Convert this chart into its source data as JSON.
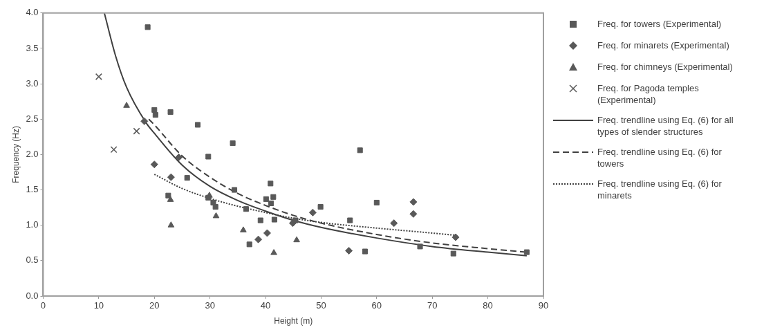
{
  "chart_data": {
    "type": "scatter",
    "xlabel": "Height (m)",
    "ylabel": "Frequency (Hz)",
    "xlim": [
      0,
      90
    ],
    "xticks": [
      0,
      10,
      20,
      30,
      40,
      50,
      60,
      70,
      80,
      90
    ],
    "ylim": [
      0,
      4
    ],
    "yticks": [
      {
        "value": 0,
        "label": "0.0"
      },
      {
        "value": 0.5,
        "label": "0.5"
      },
      {
        "value": 1,
        "label": "1.0"
      },
      {
        "value": 1.5,
        "label": "1.5"
      },
      {
        "value": 2,
        "label": "2.0"
      },
      {
        "value": 2.5,
        "label": "2.5"
      },
      {
        "value": 3,
        "label": "3.0"
      },
      {
        "value": 3.5,
        "label": "3.5"
      },
      {
        "value": 4,
        "label": "4.0"
      }
    ],
    "grid": false,
    "legend": "right",
    "series": [
      {
        "name": "Freq. for towers (Experimental)",
        "type": "scatter",
        "marker": "square",
        "color": "#595959",
        "x": [
          18.8,
          20.0,
          20.2,
          22.9,
          27.8,
          29.7,
          25.9,
          22.5,
          29.7,
          30.6,
          31.0,
          34.1,
          34.4,
          36.5,
          40.9,
          40.1,
          41.4,
          41.0,
          39.1,
          41.6,
          37.1,
          49.9,
          45.4,
          55.2,
          57.0,
          60.0,
          57.9,
          67.8,
          73.8,
          87.0
        ],
        "values": [
          3.8,
          2.63,
          2.56,
          2.6,
          2.42,
          1.97,
          1.67,
          1.42,
          1.39,
          1.32,
          1.26,
          2.16,
          1.5,
          1.23,
          1.59,
          1.37,
          1.4,
          1.31,
          1.07,
          1.08,
          0.73,
          1.26,
          1.07,
          1.07,
          2.06,
          1.32,
          0.63,
          0.7,
          0.6,
          0.62
        ]
      },
      {
        "name": "Freq. for minarets (Experimental)",
        "type": "scatter",
        "marker": "diamond",
        "color": "#595959",
        "x": [
          18.2,
          20.0,
          23.0,
          24.4,
          38.7,
          40.3,
          48.5,
          44.9,
          55.0,
          66.6,
          66.6,
          63.1,
          74.2
        ],
        "values": [
          2.47,
          1.86,
          1.68,
          1.96,
          0.8,
          0.89,
          1.18,
          1.03,
          0.64,
          1.33,
          1.16,
          1.03,
          0.83
        ]
      },
      {
        "name": "Freq. for chimneys (Experimental)",
        "type": "scatter",
        "marker": "triangle",
        "color": "#595959",
        "x": [
          15.0,
          22.9,
          23.0,
          29.9,
          31.1,
          36.0,
          41.5,
          45.6
        ],
        "values": [
          2.69,
          1.36,
          1.0,
          1.42,
          1.13,
          0.93,
          0.61,
          0.79
        ]
      },
      {
        "name": "Freq. for Pagoda temples (Experimental)",
        "type": "scatter",
        "marker": "cross",
        "color": "#595959",
        "x": [
          10.0,
          12.7,
          16.8
        ],
        "values": [
          3.1,
          2.07,
          2.33
        ]
      },
      {
        "name": "Freq. trendline using Eq. (6) for all types of slender structures",
        "type": "line",
        "marker": "none",
        "line_style": "solid",
        "color": "#404040",
        "x": [
          11,
          13,
          15,
          18.5,
          20,
          25,
          30,
          35,
          40,
          45,
          50,
          60,
          70,
          80,
          87
        ],
        "values": [
          4.0,
          3.4,
          2.95,
          2.45,
          2.3,
          1.85,
          1.55,
          1.35,
          1.2,
          1.07,
          0.97,
          0.82,
          0.7,
          0.62,
          0.57
        ]
      },
      {
        "name": "Freq. trendline using Eq. (6) for towers",
        "type": "line",
        "marker": "none",
        "line_style": "dashed",
        "color": "#404040",
        "x": [
          19,
          20,
          25,
          30,
          35,
          40,
          45,
          50,
          60,
          70,
          80,
          87
        ],
        "values": [
          2.5,
          2.42,
          1.98,
          1.68,
          1.45,
          1.28,
          1.14,
          1.03,
          0.87,
          0.75,
          0.67,
          0.62
        ]
      },
      {
        "name": "Freq. trendline using Eq. (6) for minarets",
        "type": "line",
        "marker": "none",
        "line_style": "dotted",
        "color": "#404040",
        "x": [
          20,
          25,
          30,
          35,
          40,
          45,
          50,
          60,
          70,
          74
        ],
        "values": [
          1.72,
          1.52,
          1.38,
          1.27,
          1.18,
          1.1,
          1.04,
          0.96,
          0.89,
          0.86
        ]
      }
    ]
  }
}
